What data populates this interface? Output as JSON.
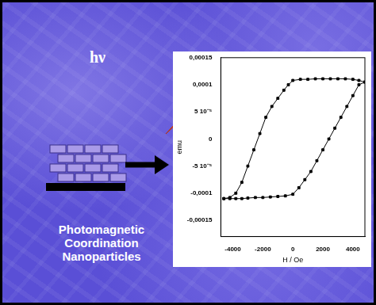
{
  "chart_data": {
    "type": "line",
    "x_label": "H / Oe",
    "y_label": "emu",
    "xlim": [
      -4800,
      4800
    ],
    "xticks": [
      -4000,
      -2000,
      0,
      2000,
      4000
    ],
    "ylim": [
      -0.00018,
      0.00015
    ],
    "yticks": [
      {
        "value": -0.00015,
        "label": "-0,00015"
      },
      {
        "value": -0.0001,
        "label": "-0,0001"
      },
      {
        "value": -5e-05,
        "label": "-5 10⁻⁵"
      },
      0,
      {
        "value": 5e-05,
        "label": "5 10⁻⁵"
      },
      {
        "value": 0.0001,
        "label": "0,0001"
      },
      {
        "value": 0.00015,
        "label": "0,00015"
      }
    ],
    "grid": false,
    "series": [
      {
        "color": "#000000",
        "marker": "square",
        "line_style": "solid",
        "x": [
          4800,
          4400,
          4000,
          3500,
          3000,
          2500,
          2000,
          1500,
          1000,
          500,
          0,
          -300,
          -600,
          -1000,
          -1400,
          -1800,
          -2200,
          -2600,
          -3000,
          -3400,
          -3800,
          -4200,
          -4600
        ],
        "values": [
          0.000105,
          0.000108,
          0.00011,
          0.000111,
          0.000111,
          0.000111,
          0.000111,
          0.000111,
          0.00011,
          0.00011,
          0.000108,
          0.0001,
          9e-05,
          7.5e-05,
          6e-05,
          4e-05,
          1e-05,
          -2e-05,
          -5e-05,
          -8e-05,
          -0.0001,
          -0.000108,
          -0.00011
        ]
      },
      {
        "color": "#000000",
        "marker": "square",
        "line_style": "solid",
        "x": [
          -4600,
          -4200,
          -3800,
          -3400,
          -3000,
          -2500,
          -2000,
          -1500,
          -1000,
          -500,
          0,
          400,
          800,
          1200,
          1600,
          2000,
          2400,
          2800,
          3200,
          3600,
          4000,
          4400,
          4800
        ],
        "values": [
          -0.00011,
          -0.00011,
          -0.00011,
          -0.00011,
          -0.000109,
          -0.000108,
          -0.000108,
          -0.000107,
          -0.000106,
          -0.000105,
          -0.000102,
          -9e-05,
          -7.5e-05,
          -6e-05,
          -4e-05,
          -2e-05,
          0,
          2e-05,
          4e-05,
          6e-05,
          8e-05,
          0.0001,
          0.000105
        ]
      }
    ],
    "annotations": [
      "hν",
      "Photomagnetic",
      "Coordination",
      "Nanoparticles"
    ]
  }
}
